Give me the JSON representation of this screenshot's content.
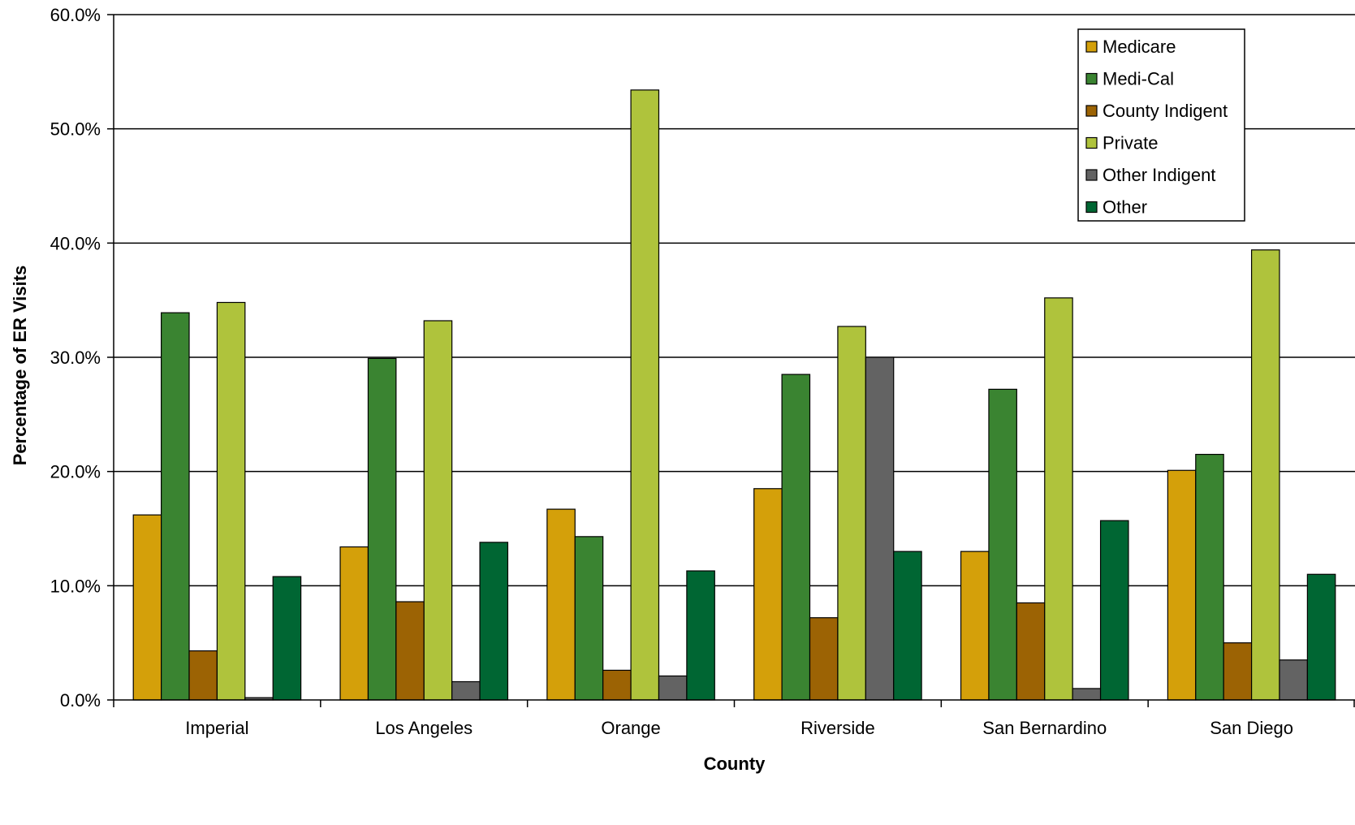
{
  "chart_data": {
    "type": "bar",
    "title": "",
    "xlabel": "County",
    "ylabel": "Percentage of ER Visits",
    "ylim": [
      0,
      60
    ],
    "ytick_step": 10,
    "ytick_format": "percent_1dp",
    "grid": true,
    "legend_position": "top-right",
    "categories": [
      "Imperial",
      "Los Angeles",
      "Orange",
      "Riverside",
      "San Bernardino",
      "San Diego"
    ],
    "series": [
      {
        "name": "Medicare",
        "color": "#D4A00A",
        "values": [
          16.2,
          13.4,
          16.7,
          18.5,
          13.0,
          20.1
        ]
      },
      {
        "name": "Medi-Cal",
        "color": "#3A8431",
        "values": [
          33.9,
          29.9,
          14.3,
          28.5,
          27.2,
          21.5
        ]
      },
      {
        "name": "County Indigent",
        "color": "#9C6304",
        "values": [
          4.3,
          8.6,
          2.6,
          7.2,
          8.5,
          5.0
        ]
      },
      {
        "name": "Private",
        "color": "#AFC33C",
        "values": [
          34.8,
          33.2,
          53.4,
          32.7,
          35.2,
          39.4
        ]
      },
      {
        "name": "Other Indigent",
        "color": "#636363",
        "values": [
          0.2,
          1.6,
          2.1,
          30.0,
          1.0,
          3.5
        ]
      },
      {
        "name": "Other",
        "color": "#006633",
        "values": [
          10.8,
          13.8,
          11.3,
          13.0,
          15.7,
          11.0
        ]
      }
    ]
  }
}
